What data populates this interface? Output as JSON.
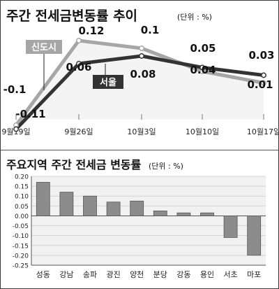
{
  "colors": {
    "seoul": "#333333",
    "shindosi": "#a6a6a6",
    "bar": "#8c8c8c",
    "grid": "#d4d4d4",
    "plot_bg": "#f1f1f1",
    "label_bg_dark": "#333333",
    "label_bg_light": "#a6a6a6"
  },
  "chart_data": [
    {
      "type": "line",
      "title": "주간 전세금변동률 추이",
      "unit": "(단위 : %)",
      "categories": [
        "9월19일",
        "9월26일",
        "10월3일",
        "10월10일",
        "10월17일"
      ],
      "series": [
        {
          "name": "신도시",
          "values": [
            -0.1,
            0.12,
            0.1,
            0.04,
            0.01
          ],
          "labels": [
            "-0.1",
            "0.12",
            "0.1",
            "0.04",
            "0.01"
          ]
        },
        {
          "name": "서울",
          "values": [
            -0.11,
            0.06,
            0.08,
            0.05,
            0.03
          ],
          "labels": [
            "-0.11",
            "0.06",
            "0.08",
            "0.05",
            "0.03"
          ]
        }
      ],
      "ylim": [
        -0.11,
        0.12
      ],
      "grid": false,
      "legend": "inline labels"
    },
    {
      "type": "bar",
      "title": "주요지역 주간 전세금 변동률",
      "unit": "(단위 : %)",
      "categories": [
        "성동",
        "강남",
        "송파",
        "광진",
        "양천",
        "분당",
        "강동",
        "용인",
        "서초",
        "마포"
      ],
      "values": [
        0.17,
        0.12,
        0.1,
        0.07,
        0.075,
        0.025,
        0.015,
        0.015,
        -0.11,
        -0.2
      ],
      "yticks": [
        "0.20",
        "0.15",
        "0.10",
        "0.05",
        "0.00",
        "-0.05",
        "-0.10",
        "-0.15",
        "-0.20",
        "-0.25"
      ],
      "ylim": [
        -0.25,
        0.2
      ],
      "grid": true
    }
  ]
}
